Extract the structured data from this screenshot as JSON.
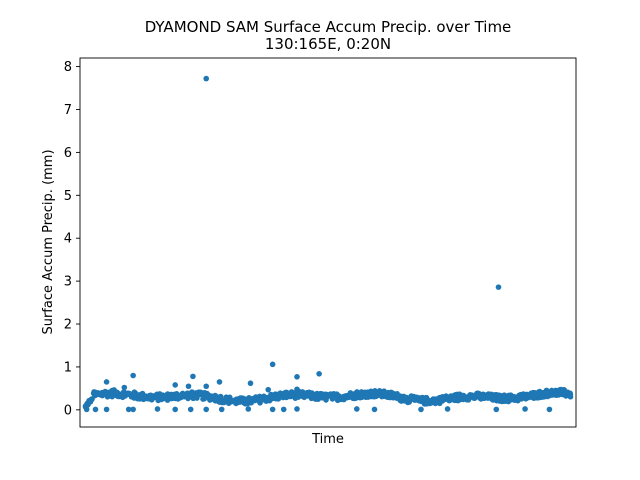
{
  "chart_data": {
    "type": "scatter",
    "title": "DYAMOND SAM Surface Accum Precip. over Time",
    "subtitle": "130:165E, 0:20N",
    "xlabel": "Time",
    "ylabel": "Surface Accum Precip. (mm)",
    "ylim": [
      -0.4,
      8.2
    ],
    "yticks": [
      0,
      1,
      2,
      3,
      4,
      5,
      6,
      7,
      8
    ],
    "xlim": [
      -2,
      222
    ],
    "x_ticks_shown": false,
    "grid": false,
    "legend": "none",
    "color": "#1f77b4",
    "baseline": {
      "n": 220,
      "mean": 0.3,
      "amplitude": 0.1,
      "noise": 0.08
    },
    "outliers": [
      {
        "x": 55,
        "y": 7.72
      },
      {
        "x": 187,
        "y": 2.86
      },
      {
        "x": 85,
        "y": 1.06
      },
      {
        "x": 106,
        "y": 0.84
      },
      {
        "x": 22,
        "y": 0.8
      },
      {
        "x": 49,
        "y": 0.78
      },
      {
        "x": 96,
        "y": 0.77
      },
      {
        "x": 10,
        "y": 0.65
      },
      {
        "x": 61,
        "y": 0.65
      },
      {
        "x": 75,
        "y": 0.62
      },
      {
        "x": 41,
        "y": 0.58
      },
      {
        "x": 47,
        "y": 0.55
      },
      {
        "x": 55,
        "y": 0.55
      },
      {
        "x": 18,
        "y": 0.52
      },
      {
        "x": 83,
        "y": 0.47
      },
      {
        "x": 96,
        "y": 0.48
      },
      {
        "x": 1,
        "y": 0.01
      },
      {
        "x": 5,
        "y": 0.01
      },
      {
        "x": 10,
        "y": 0.01
      },
      {
        "x": 20,
        "y": 0.01
      },
      {
        "x": 22,
        "y": 0.01
      },
      {
        "x": 33,
        "y": 0.02
      },
      {
        "x": 41,
        "y": 0.01
      },
      {
        "x": 48,
        "y": 0.01
      },
      {
        "x": 55,
        "y": 0.01
      },
      {
        "x": 62,
        "y": 0.01
      },
      {
        "x": 74,
        "y": 0.02
      },
      {
        "x": 85,
        "y": 0.01
      },
      {
        "x": 90,
        "y": 0.01
      },
      {
        "x": 96,
        "y": 0.02
      },
      {
        "x": 123,
        "y": 0.02
      },
      {
        "x": 131,
        "y": 0.01
      },
      {
        "x": 152,
        "y": 0.01
      },
      {
        "x": 164,
        "y": 0.02
      },
      {
        "x": 186,
        "y": 0.01
      },
      {
        "x": 199,
        "y": 0.02
      },
      {
        "x": 210,
        "y": 0.01
      }
    ]
  }
}
